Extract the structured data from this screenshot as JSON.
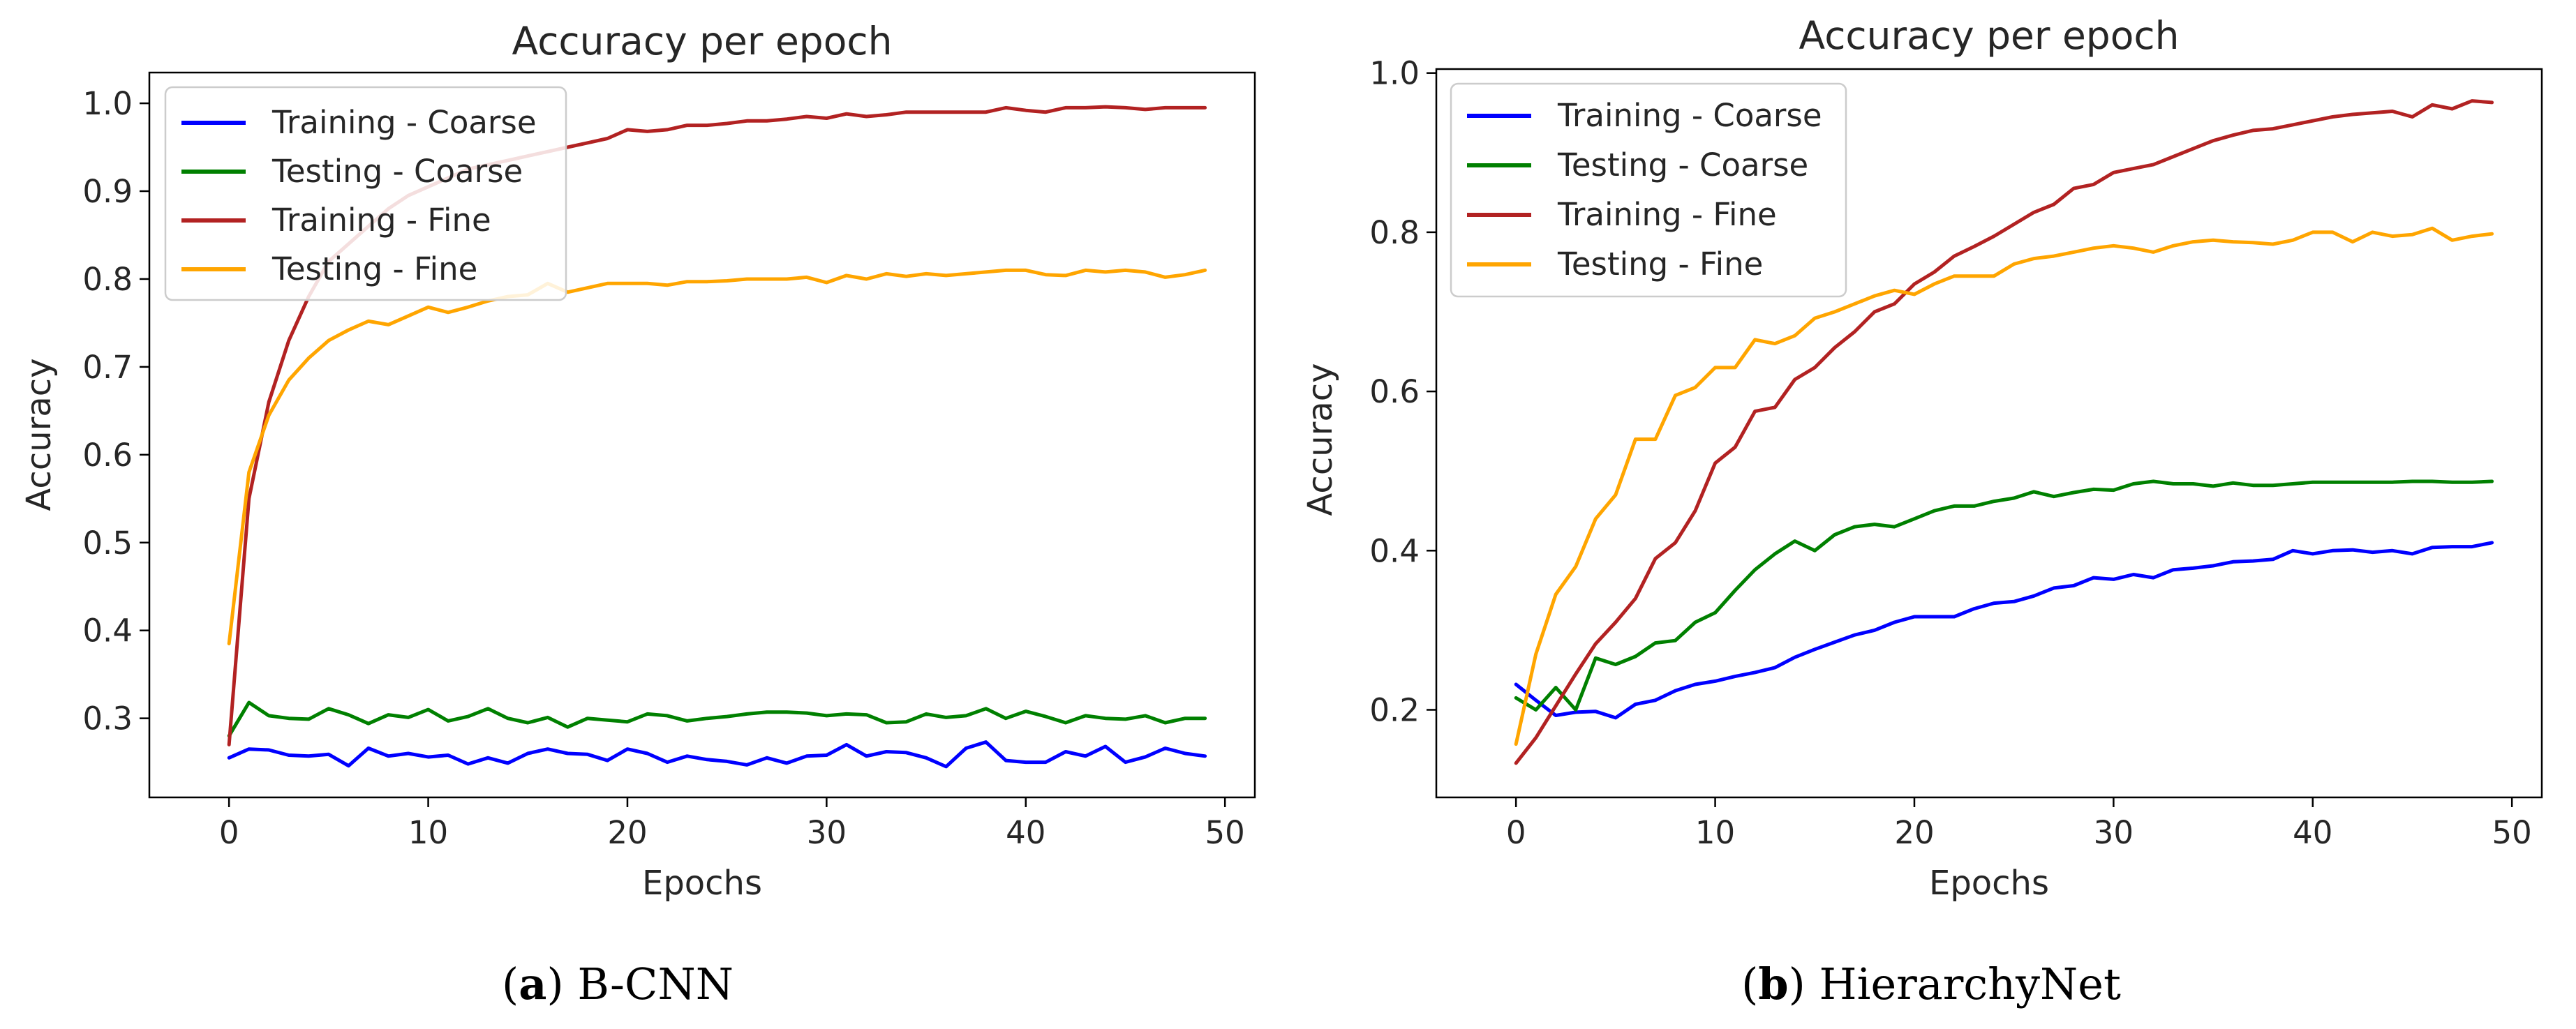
{
  "chart_data": [
    {
      "type": "line",
      "title": "Accuracy per epoch",
      "xlabel": "Epochs",
      "ylabel": "Accuracy",
      "caption_tag": "a",
      "caption_name": "B-CNN",
      "xlim": [
        -4,
        51.5
      ],
      "ylim": [
        0.21,
        1.035
      ],
      "xticks": [
        0,
        10,
        20,
        30,
        40,
        50
      ],
      "yticks": [
        0.3,
        0.4,
        0.5,
        0.6,
        0.7,
        0.8,
        0.9,
        1.0
      ],
      "ytick_labels": [
        "0.3",
        "0.4",
        "0.5",
        "0.6",
        "0.7",
        "0.8",
        "0.9",
        "1.0"
      ],
      "legend_position": "top-left",
      "series": [
        {
          "name": "Training - Coarse",
          "color": "#0000ff",
          "values": [
            0.255,
            0.265,
            0.264,
            0.258,
            0.257,
            0.259,
            0.246,
            0.266,
            0.257,
            0.26,
            0.256,
            0.258,
            0.248,
            0.255,
            0.249,
            0.26,
            0.265,
            0.26,
            0.259,
            0.252,
            0.265,
            0.26,
            0.25,
            0.257,
            0.253,
            0.251,
            0.247,
            0.255,
            0.249,
            0.257,
            0.258,
            0.27,
            0.257,
            0.262,
            0.261,
            0.255,
            0.245,
            0.266,
            0.273,
            0.252,
            0.25,
            0.25,
            0.262,
            0.257,
            0.268,
            0.25,
            0.256,
            0.266,
            0.26,
            0.257
          ]
        },
        {
          "name": "Testing - Coarse",
          "color": "#008000",
          "values": [
            0.28,
            0.318,
            0.303,
            0.3,
            0.299,
            0.311,
            0.304,
            0.294,
            0.304,
            0.301,
            0.31,
            0.297,
            0.302,
            0.311,
            0.3,
            0.295,
            0.301,
            0.29,
            0.3,
            0.298,
            0.296,
            0.305,
            0.303,
            0.297,
            0.3,
            0.302,
            0.305,
            0.307,
            0.307,
            0.306,
            0.303,
            0.305,
            0.304,
            0.295,
            0.296,
            0.305,
            0.301,
            0.303,
            0.311,
            0.3,
            0.308,
            0.302,
            0.295,
            0.303,
            0.3,
            0.299,
            0.303,
            0.295,
            0.3,
            0.3
          ]
        },
        {
          "name": "Training - Fine",
          "color": "#b22222",
          "values": [
            0.27,
            0.55,
            0.66,
            0.73,
            0.78,
            0.82,
            0.84,
            0.86,
            0.88,
            0.895,
            0.905,
            0.915,
            0.925,
            0.93,
            0.935,
            0.94,
            0.945,
            0.95,
            0.955,
            0.96,
            0.97,
            0.968,
            0.97,
            0.975,
            0.975,
            0.977,
            0.98,
            0.98,
            0.982,
            0.985,
            0.983,
            0.988,
            0.985,
            0.987,
            0.99,
            0.99,
            0.99,
            0.99,
            0.99,
            0.995,
            0.992,
            0.99,
            0.995,
            0.995,
            0.996,
            0.995,
            0.993,
            0.995,
            0.995,
            0.995
          ]
        },
        {
          "name": "Testing - Fine",
          "color": "#ffa500",
          "values": [
            0.385,
            0.58,
            0.645,
            0.685,
            0.71,
            0.73,
            0.742,
            0.752,
            0.748,
            0.758,
            0.768,
            0.762,
            0.768,
            0.775,
            0.78,
            0.782,
            0.795,
            0.785,
            0.79,
            0.795,
            0.795,
            0.795,
            0.793,
            0.797,
            0.797,
            0.798,
            0.8,
            0.8,
            0.8,
            0.802,
            0.796,
            0.804,
            0.8,
            0.806,
            0.803,
            0.806,
            0.804,
            0.806,
            0.808,
            0.81,
            0.81,
            0.805,
            0.804,
            0.81,
            0.808,
            0.81,
            0.808,
            0.802,
            0.805,
            0.81
          ]
        }
      ]
    },
    {
      "type": "line",
      "title": "Accuracy per epoch",
      "xlabel": "Epochs",
      "ylabel": "Accuracy",
      "caption_tag": "b",
      "caption_name": "HierarchyNet",
      "xlim": [
        -4,
        51.5
      ],
      "ylim": [
        0.09,
        1.005
      ],
      "xticks": [
        0,
        10,
        20,
        30,
        40,
        50
      ],
      "yticks": [
        0.2,
        0.4,
        0.6,
        0.8,
        1.0
      ],
      "ytick_labels": [
        "0.2",
        "0.4",
        "0.6",
        "0.8",
        "1.0"
      ],
      "legend_position": "top-left",
      "series": [
        {
          "name": "Training - Coarse",
          "color": "#0000ff",
          "values": [
            0.232,
            0.212,
            0.193,
            0.197,
            0.198,
            0.19,
            0.207,
            0.212,
            0.224,
            0.232,
            0.236,
            0.242,
            0.247,
            0.253,
            0.266,
            0.276,
            0.285,
            0.294,
            0.3,
            0.31,
            0.317,
            0.317,
            0.317,
            0.327,
            0.334,
            0.336,
            0.343,
            0.353,
            0.356,
            0.366,
            0.364,
            0.37,
            0.366,
            0.376,
            0.378,
            0.381,
            0.386,
            0.387,
            0.389,
            0.4,
            0.396,
            0.4,
            0.401,
            0.398,
            0.4,
            0.396,
            0.404,
            0.405,
            0.405,
            0.41
          ]
        },
        {
          "name": "Testing - Coarse",
          "color": "#008000",
          "values": [
            0.215,
            0.2,
            0.228,
            0.2,
            0.265,
            0.257,
            0.267,
            0.284,
            0.287,
            0.31,
            0.322,
            0.35,
            0.376,
            0.396,
            0.412,
            0.4,
            0.42,
            0.43,
            0.433,
            0.43,
            0.44,
            0.45,
            0.456,
            0.456,
            0.462,
            0.466,
            0.474,
            0.468,
            0.473,
            0.477,
            0.476,
            0.484,
            0.487,
            0.484,
            0.484,
            0.481,
            0.485,
            0.482,
            0.482,
            0.484,
            0.486,
            0.486,
            0.486,
            0.486,
            0.486,
            0.487,
            0.487,
            0.486,
            0.486,
            0.487
          ]
        },
        {
          "name": "Training - Fine",
          "color": "#b22222",
          "values": [
            0.133,
            0.165,
            0.205,
            0.245,
            0.283,
            0.31,
            0.34,
            0.39,
            0.41,
            0.45,
            0.51,
            0.53,
            0.575,
            0.58,
            0.615,
            0.63,
            0.655,
            0.675,
            0.7,
            0.71,
            0.735,
            0.75,
            0.77,
            0.782,
            0.795,
            0.81,
            0.825,
            0.835,
            0.855,
            0.86,
            0.875,
            0.88,
            0.885,
            0.895,
            0.905,
            0.915,
            0.922,
            0.928,
            0.93,
            0.935,
            0.94,
            0.945,
            0.948,
            0.95,
            0.952,
            0.945,
            0.96,
            0.955,
            0.965,
            0.963
          ]
        },
        {
          "name": "Testing - Fine",
          "color": "#ffa500",
          "values": [
            0.157,
            0.27,
            0.345,
            0.38,
            0.44,
            0.47,
            0.54,
            0.54,
            0.595,
            0.605,
            0.63,
            0.63,
            0.665,
            0.66,
            0.67,
            0.692,
            0.7,
            0.71,
            0.72,
            0.727,
            0.722,
            0.735,
            0.745,
            0.745,
            0.745,
            0.76,
            0.767,
            0.77,
            0.775,
            0.78,
            0.783,
            0.78,
            0.775,
            0.783,
            0.788,
            0.79,
            0.788,
            0.787,
            0.785,
            0.79,
            0.8,
            0.8,
            0.788,
            0.8,
            0.795,
            0.797,
            0.805,
            0.79,
            0.795,
            0.798
          ]
        }
      ]
    }
  ]
}
